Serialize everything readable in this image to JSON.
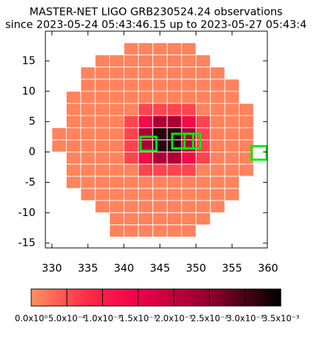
{
  "chart_data": {
    "type": "heatmap",
    "title": "MASTER-NET LIGO GRB230524.24 observations",
    "subtitle": "since 2023-05-24 05:43:46.15 up to 2023-05-27 05:43:4",
    "x": [
      331,
      333,
      335,
      337,
      339,
      341,
      343,
      345,
      347,
      349,
      351,
      353,
      355,
      357,
      359
    ],
    "y": [
      17,
      15,
      13,
      11,
      9,
      7,
      5,
      3,
      1,
      -1,
      -3,
      -5,
      -7,
      -9,
      -11,
      -13
    ],
    "cell_size": 2,
    "z": [
      [
        null,
        null,
        null,
        null,
        null,
        0.0001,
        0.0001,
        0.0001,
        0.0001,
        0.0001,
        null,
        null,
        null,
        null,
        null
      ],
      [
        null,
        null,
        null,
        0.0001,
        0.0001,
        0.0001,
        0.0001,
        0.0001,
        0.0001,
        0.0001,
        0.0001,
        null,
        null,
        null,
        null
      ],
      [
        null,
        null,
        0.0001,
        0.0001,
        0.0001,
        0.0001,
        0.0001,
        0.0001,
        0.0001,
        0.0001,
        0.0001,
        0.0001,
        null,
        null,
        null
      ],
      [
        null,
        null,
        0.0001,
        0.0001,
        0.0001,
        0.0001,
        0.0001,
        0.0001,
        0.0001,
        0.0001,
        0.0001,
        0.0001,
        0.0001,
        null,
        null
      ],
      [
        null,
        0.0001,
        0.0001,
        0.0001,
        0.0001,
        0.0001,
        0.0001,
        0.0001,
        0.0001,
        0.0001,
        0.0001,
        0.0001,
        0.0001,
        null,
        null
      ],
      [
        null,
        0.0001,
        0.0001,
        0.0001,
        0.0001,
        0.0001,
        0.0006,
        0.0006,
        0.0006,
        0.0006,
        0.0001,
        0.0001,
        0.0001,
        0.0001,
        null
      ],
      [
        null,
        0.0001,
        0.0001,
        0.0001,
        0.0001,
        0.0006,
        0.0013,
        0.0022,
        0.0022,
        0.0013,
        0.0006,
        0.0001,
        0.0001,
        0.0001,
        null
      ],
      [
        0.0001,
        0.0001,
        0.0001,
        0.0001,
        0.0001,
        0.0006,
        0.0022,
        0.0032,
        0.0032,
        0.0022,
        0.0006,
        0.0001,
        0.0001,
        0.0001,
        null
      ],
      [
        0.0001,
        0.0001,
        0.0001,
        0.0001,
        0.0001,
        0.0006,
        0.0022,
        0.0032,
        0.0032,
        0.0022,
        0.0006,
        0.0001,
        0.0001,
        0.0001,
        null
      ],
      [
        null,
        0.0001,
        0.0001,
        0.0001,
        0.0001,
        0.0006,
        0.0013,
        0.0022,
        0.0022,
        0.0013,
        0.0006,
        0.0001,
        0.0001,
        0.0001,
        null
      ],
      [
        null,
        0.0001,
        0.0001,
        0.0001,
        0.0001,
        0.0001,
        0.0006,
        0.0006,
        0.0006,
        0.0006,
        0.0001,
        0.0001,
        0.0001,
        0.0001,
        null
      ],
      [
        null,
        0.0001,
        0.0001,
        0.0001,
        0.0001,
        0.0001,
        0.0001,
        0.0001,
        0.0001,
        0.0001,
        0.0001,
        0.0001,
        0.0001,
        null,
        null
      ],
      [
        null,
        null,
        0.0001,
        0.0001,
        0.0001,
        0.0001,
        0.0001,
        0.0001,
        0.0001,
        0.0001,
        0.0001,
        0.0001,
        0.0001,
        null,
        null
      ],
      [
        null,
        null,
        null,
        0.0001,
        0.0001,
        0.0001,
        0.0001,
        0.0001,
        0.0001,
        0.0001,
        0.0001,
        0.0001,
        null,
        null,
        null
      ],
      [
        null,
        null,
        null,
        null,
        0.0001,
        0.0001,
        0.0001,
        0.0001,
        0.0001,
        0.0001,
        0.0001,
        null,
        null,
        null,
        null
      ],
      [
        null,
        null,
        null,
        null,
        0.0001,
        0.0001,
        0.0001,
        0.0001,
        0.0001,
        0.0001,
        null,
        null,
        null,
        null,
        null
      ]
    ],
    "fields": [
      {
        "x": [
          342.3,
          344.5
        ],
        "y": [
          0.2,
          2.5
        ]
      },
      {
        "x": [
          346.7,
          349.6
        ],
        "y": [
          0.6,
          3.0
        ]
      },
      {
        "x": [
          348.4,
          350.6
        ],
        "y": [
          0.6,
          3.0
        ]
      },
      {
        "x": [
          357.7,
          359.8
        ],
        "y": [
          -1.26,
          0.96
        ]
      }
    ],
    "field_color": "#00ee00",
    "xlim": [
      329.1,
      359.9
    ],
    "ylim": [
      -15.8,
      19.9
    ],
    "xticks": [
      330,
      335,
      340,
      345,
      350,
      355,
      360
    ],
    "yticks": [
      -15,
      -10,
      -5,
      0,
      5,
      10,
      15
    ],
    "colorbar": {
      "clim": [
        0,
        0.0035
      ],
      "ticks": [
        {
          "value": 0,
          "label": "0.0x10⁰"
        },
        {
          "value": 0.0005,
          "label": "5.0x10⁻⁴"
        },
        {
          "value": 0.001,
          "label": "1.0x10⁻³"
        },
        {
          "value": 0.0015,
          "label": "1.5x10⁻³"
        },
        {
          "value": 0.002,
          "label": "2.0x10⁻³"
        },
        {
          "value": 0.0025,
          "label": "2.5x10⁻³"
        },
        {
          "value": 0.003,
          "label": "3.0x10⁻³"
        },
        {
          "value": 0.0035,
          "label": "3.5x10⁻³"
        }
      ],
      "colormap": [
        {
          "value": 0,
          "color": "#ff9060"
        },
        {
          "value": 0.0008,
          "color": "#ff2a48"
        },
        {
          "value": 0.0015,
          "color": "#f0004a"
        },
        {
          "value": 0.0025,
          "color": "#90002c"
        },
        {
          "value": 0.0035,
          "color": "#000000"
        }
      ]
    }
  }
}
